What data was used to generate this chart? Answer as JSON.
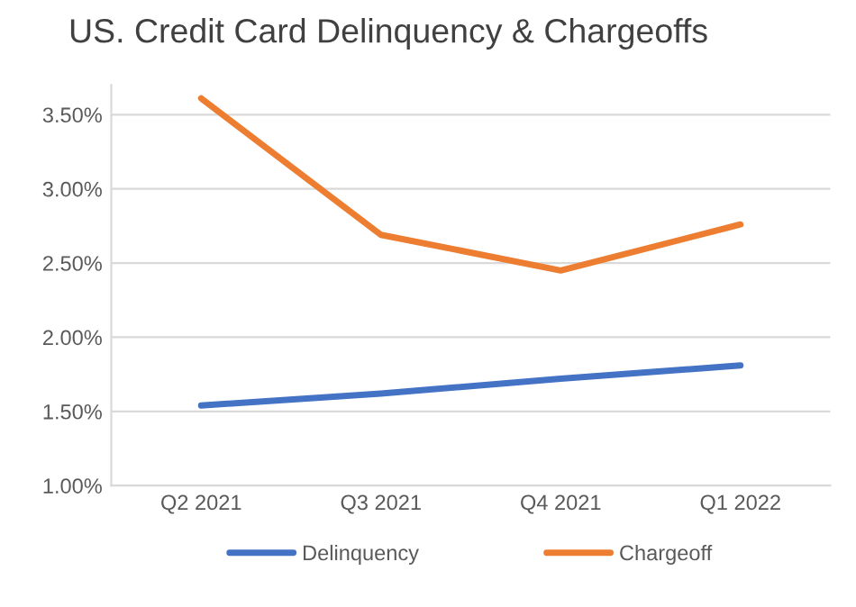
{
  "chart_data": {
    "type": "line",
    "title": "US. Credit Card Delinquency & Chargeoffs",
    "categories": [
      "Q2 2021",
      "Q3 2021",
      "Q4 2021",
      "Q1 2022"
    ],
    "series": [
      {
        "name": "Delinquency",
        "color": "#4472c4",
        "values": [
          1.54,
          1.62,
          1.72,
          1.81
        ]
      },
      {
        "name": "Chargeoff",
        "color": "#ed7d31",
        "values": [
          3.61,
          2.69,
          2.45,
          2.76
        ]
      }
    ],
    "ylim": [
      1.0,
      3.7
    ],
    "yticks": [
      {
        "value": 1.0,
        "label": "1.00%"
      },
      {
        "value": 1.5,
        "label": "1.50%"
      },
      {
        "value": 2.0,
        "label": "2.00%"
      },
      {
        "value": 2.5,
        "label": "2.50%"
      },
      {
        "value": 3.0,
        "label": "3.00%"
      },
      {
        "value": 3.5,
        "label": "3.50%"
      }
    ],
    "grid": "y",
    "legend": "bottom",
    "marker": "none",
    "line_style": "solid"
  }
}
